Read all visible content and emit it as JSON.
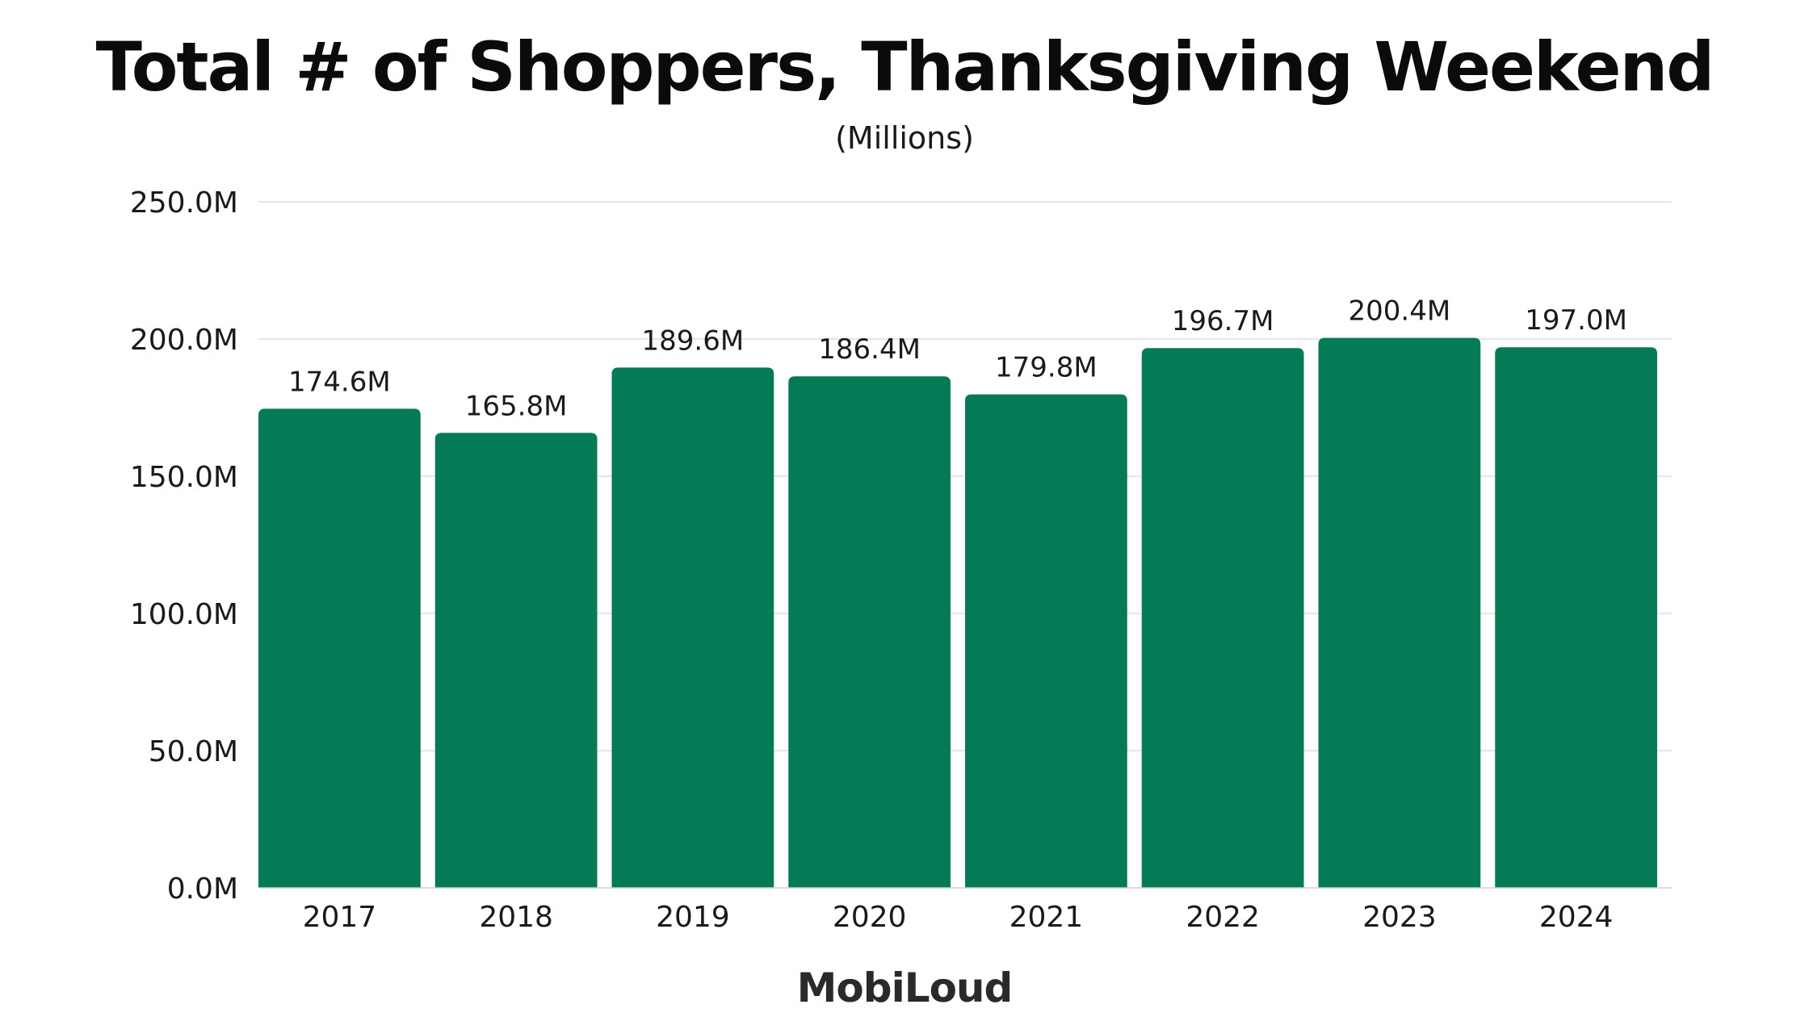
{
  "chart_data": {
    "type": "bar",
    "title": "Total # of Shoppers, Thanksgiving Weekend",
    "subtitle": "(Millions)",
    "xlabel": "",
    "ylabel": "",
    "categories": [
      "2017",
      "2018",
      "2019",
      "2020",
      "2021",
      "2022",
      "2023",
      "2024"
    ],
    "values": [
      174.6,
      165.8,
      189.6,
      186.4,
      179.8,
      196.7,
      200.4,
      197.0
    ],
    "data_labels": [
      "174.6M",
      "165.8M",
      "189.6M",
      "186.4M",
      "179.8M",
      "196.7M",
      "200.4M",
      "197.0M"
    ],
    "ylim": [
      0,
      250
    ],
    "yticks": [
      0,
      50,
      100,
      150,
      200,
      250
    ],
    "ytick_labels": [
      "0.0M",
      "50.0M",
      "100.0M",
      "150.0M",
      "200.0M",
      "250.0M"
    ],
    "grid": true,
    "legend": "none",
    "bar_color": "#057a57"
  },
  "brand": {
    "logo_text": "MobiLoud"
  }
}
